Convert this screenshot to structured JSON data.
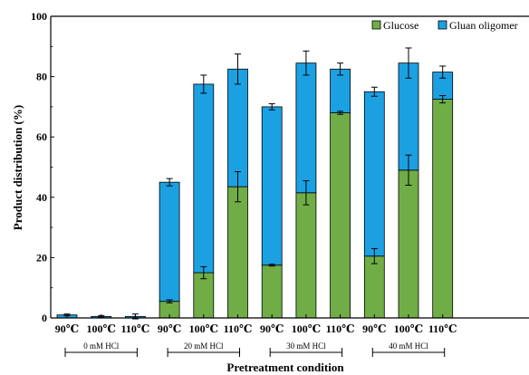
{
  "chart_data": {
    "type": "bar",
    "stacked": true,
    "title": "",
    "xlabel": "Pretreatment condition",
    "ylabel": "Product distribution (%)",
    "ylim": [
      0,
      100
    ],
    "yticks": [
      0,
      20,
      40,
      60,
      80,
      100
    ],
    "categories": [
      "90℃",
      "100℃",
      "110℃",
      "90℃",
      "100℃",
      "110℃",
      "90℃",
      "100℃",
      "110℃",
      "90℃",
      "100℃",
      "110℃"
    ],
    "groups": [
      {
        "label": "0 mM HCl",
        "start": 0,
        "end": 2
      },
      {
        "label": "20 mM HCl",
        "start": 3,
        "end": 5
      },
      {
        "label": "30 mM HCl",
        "start": 6,
        "end": 8
      },
      {
        "label": "40 mM HCl",
        "start": 9,
        "end": 11
      }
    ],
    "series": [
      {
        "name": "Glucose",
        "color": "#70AD47",
        "values": [
          0,
          0,
          0,
          5.5,
          15,
          43.5,
          17.5,
          41.5,
          68,
          20.5,
          49,
          72.5
        ],
        "errors": [
          0,
          0,
          0,
          0.5,
          2,
          5,
          0.3,
          4,
          0.5,
          2.5,
          5,
          1.2
        ]
      },
      {
        "name": "Gluan oligomer",
        "color": "#1BA1E2",
        "values": [
          1,
          0.5,
          0.5,
          39.5,
          62.5,
          39,
          52.5,
          43,
          14.5,
          54.5,
          35.5,
          9
        ],
        "errors": [
          0.3,
          0.3,
          0.8,
          1.2,
          3,
          5,
          1,
          4,
          2,
          1.5,
          5,
          2
        ]
      }
    ],
    "legend_position": "top-right",
    "grid": false
  }
}
